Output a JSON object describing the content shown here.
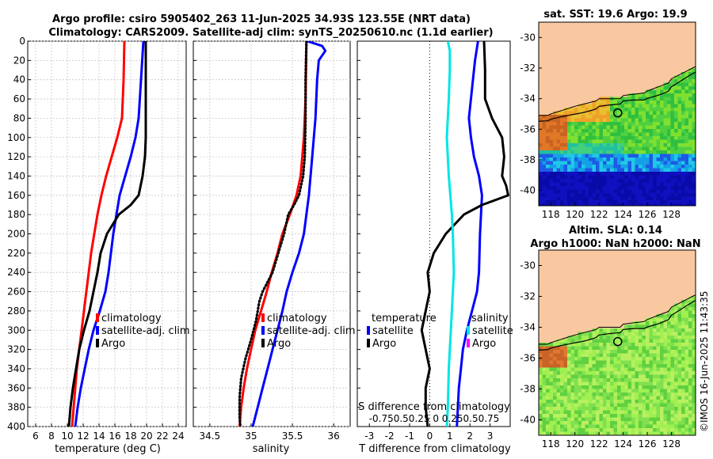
{
  "titles": {
    "line1": "Argo profile: csiro 5905402_263 11-Jun-2025 34.93S 123.55E (NRT data)",
    "line2": "Climatology: CARS2009. Satellite-adj clim: synTS_20250610.nc (1.1d earlier)",
    "sst": "sat. SST: 19.6 Argo: 19.9",
    "sla1": "Altim. SLA: 0.14",
    "sla2": "Argo h1000: NaN h2000: NaN",
    "watermark": "©IMOS 16-Jun-2025 11:43:35"
  },
  "colors": {
    "climatology": "#ff0000",
    "satellite": "#0000ff",
    "argo": "#000000",
    "argo_salinity": "#000000",
    "cyan": "#00e5e5",
    "land": "#fac8a0"
  },
  "chart_data": [
    {
      "type": "line",
      "panel": "temperature",
      "xlabel": "temperature (deg C)",
      "ylabel": "",
      "xlim": [
        5,
        25
      ],
      "ylim": [
        400,
        0
      ],
      "xticks": [
        6,
        8,
        10,
        12,
        14,
        16,
        18,
        20,
        22,
        24
      ],
      "yticks": [
        0,
        20,
        40,
        60,
        80,
        100,
        120,
        140,
        160,
        180,
        200,
        220,
        240,
        260,
        280,
        300,
        320,
        340,
        360,
        380,
        400
      ],
      "grid": true,
      "legend": [
        "climatology",
        "satellite-adj. clim",
        "Argo"
      ],
      "series": [
        {
          "name": "climatology",
          "style": "solid",
          "color": "climatology",
          "depth": [
            0,
            40,
            80,
            100,
            120,
            140,
            160,
            180,
            200,
            220,
            240,
            260,
            280,
            300,
            320,
            340,
            360,
            380,
            400
          ],
          "values": [
            17.2,
            17.1,
            16.9,
            16.3,
            15.6,
            14.9,
            14.3,
            13.8,
            13.4,
            13.0,
            12.7,
            12.4,
            12.1,
            11.8,
            11.5,
            11.2,
            11.0,
            10.8,
            10.6
          ]
        },
        {
          "name": "satellite-adj. clim",
          "style": "solid",
          "color": "satellite",
          "depth": [
            0,
            40,
            80,
            100,
            120,
            140,
            160,
            180,
            200,
            220,
            240,
            260,
            280,
            300,
            320,
            340,
            360,
            380,
            400
          ],
          "values": [
            19.6,
            19.3,
            19.0,
            18.6,
            18.0,
            17.3,
            16.6,
            16.2,
            15.8,
            15.5,
            15.2,
            14.8,
            14.1,
            13.3,
            12.7,
            12.2,
            11.7,
            11.3,
            11.0
          ]
        },
        {
          "name": "Argo",
          "style": "solid",
          "color": "argo",
          "depth": [
            0,
            40,
            80,
            100,
            120,
            140,
            160,
            170,
            180,
            200,
            220,
            240,
            260,
            280,
            300,
            320,
            340,
            360,
            380,
            400
          ],
          "values": [
            19.9,
            19.9,
            19.9,
            19.9,
            19.8,
            19.5,
            19.0,
            18.0,
            16.5,
            15.0,
            14.2,
            13.8,
            13.3,
            12.8,
            12.1,
            11.5,
            11.1,
            10.7,
            10.4,
            10.2
          ]
        }
      ]
    },
    {
      "type": "line",
      "panel": "salinity",
      "xlabel": "salinity",
      "ylabel": "",
      "xlim": [
        34.3,
        36.2
      ],
      "ylim": [
        400,
        0
      ],
      "xticks": [
        34.5,
        35,
        35.5,
        36
      ],
      "xticklabels": [
        "34.5",
        "35",
        "35.5",
        "36"
      ],
      "grid": true,
      "legend": [
        "climatology",
        "satellite-adj. clim",
        "Argo"
      ],
      "series": [
        {
          "name": "climatology",
          "style": "solid",
          "color": "climatology",
          "depth": [
            0,
            60,
            100,
            140,
            160,
            180,
            200,
            220,
            240,
            260,
            280,
            300,
            320,
            340,
            360,
            380,
            400
          ],
          "values": [
            35.67,
            35.66,
            35.64,
            35.6,
            35.55,
            35.47,
            35.38,
            35.32,
            35.25,
            35.19,
            35.12,
            35.05,
            35.0,
            34.95,
            34.91,
            34.88,
            34.86
          ]
        },
        {
          "name": "satellite-adj. clim",
          "style": "solid",
          "color": "satellite",
          "depth": [
            0,
            5,
            10,
            20,
            40,
            80,
            120,
            160,
            200,
            220,
            240,
            260,
            280,
            300,
            320,
            340,
            360,
            380,
            400
          ],
          "values": [
            35.68,
            35.86,
            35.9,
            35.82,
            35.8,
            35.78,
            35.74,
            35.7,
            35.64,
            35.58,
            35.5,
            35.43,
            35.38,
            35.32,
            35.26,
            35.2,
            35.14,
            35.08,
            35.02
          ]
        },
        {
          "name": "Argo",
          "style": "dotted",
          "color": "argo_salinity",
          "depth": [
            0,
            40,
            80,
            120,
            140,
            160,
            170,
            180,
            200,
            220,
            240,
            260,
            270,
            290,
            310,
            330,
            350,
            370,
            390,
            400
          ],
          "values": [
            35.67,
            35.66,
            35.66,
            35.65,
            35.63,
            35.58,
            35.52,
            35.45,
            35.4,
            35.33,
            35.26,
            35.14,
            35.1,
            35.06,
            35.0,
            34.93,
            34.88,
            34.86,
            34.86,
            34.87
          ]
        }
      ]
    },
    {
      "type": "line",
      "panel": "difference",
      "xlabel": "T difference from climatology",
      "top_xlabel": "S difference from climatology",
      "ylabel": "",
      "xlim": [
        -3.6,
        4.0
      ],
      "ylim": [
        400,
        0
      ],
      "xticks": [
        -3,
        -2,
        -1,
        0,
        1,
        2,
        3
      ],
      "top_xticklabels": [
        "-0.75",
        "-0.5",
        "0",
        "0.25",
        "0.5",
        "0.75"
      ],
      "top_xticklabel_text": "-0.750.50.25 0 0.250.50.75",
      "grid": false,
      "legend": [
        "temperature",
        "satellite",
        "Argo",
        "salinity",
        "satellite",
        "Argo"
      ],
      "series": [
        {
          "name": "temperature satellite",
          "style": "solid",
          "color": "satellite",
          "depth": [
            0,
            20,
            40,
            80,
            100,
            120,
            140,
            160,
            200,
            240,
            260,
            280,
            300,
            320,
            340,
            360,
            380,
            400
          ],
          "values": [
            2.4,
            2.25,
            2.15,
            1.95,
            2.05,
            2.2,
            2.45,
            2.6,
            2.5,
            2.45,
            2.35,
            2.1,
            1.85,
            1.65,
            1.55,
            1.45,
            1.4,
            1.35
          ]
        },
        {
          "name": "temperature Argo",
          "style": "solid",
          "color": "argo",
          "depth": [
            0,
            30,
            60,
            80,
            100,
            120,
            140,
            150,
            160,
            170,
            180,
            200,
            220,
            240,
            260,
            280,
            300,
            320,
            340,
            360,
            380,
            400
          ],
          "values": [
            2.7,
            2.75,
            2.75,
            3.1,
            3.6,
            3.7,
            3.6,
            3.8,
            3.9,
            2.6,
            1.7,
            0.8,
            0.2,
            -0.1,
            0.0,
            -0.2,
            -0.4,
            -0.2,
            0.0,
            -0.2,
            -0.2,
            -0.1
          ]
        },
        {
          "name": "salinity satellite",
          "style": "solid",
          "color": "cyan",
          "depth": [
            0,
            10,
            30,
            60,
            100,
            140,
            180,
            200,
            240,
            280,
            300,
            340,
            380,
            400
          ],
          "values": [
            0.9,
            1.0,
            1.0,
            0.95,
            0.85,
            0.95,
            1.1,
            1.15,
            1.2,
            1.1,
            1.05,
            0.95,
            0.9,
            0.85
          ]
        }
      ]
    },
    {
      "type": "heatmap",
      "panel": "sst_map",
      "title": "sat. SST: 19.6 Argo: 19.9",
      "xticks": [
        118,
        120,
        122,
        124,
        126,
        128
      ],
      "yticks": [
        -30,
        -32,
        -34,
        -36,
        -38,
        -40
      ],
      "xlim": [
        117,
        130
      ],
      "ylim": [
        -41,
        -29
      ],
      "argo_position": {
        "lon": 123.55,
        "lat": -34.93
      }
    },
    {
      "type": "heatmap",
      "panel": "sla_map",
      "title": "Altim. SLA: 0.14",
      "subtitle": "Argo h1000: NaN h2000: NaN",
      "xticks": [
        118,
        120,
        122,
        124,
        126,
        128
      ],
      "yticks": [
        -30,
        -32,
        -34,
        -36,
        -38,
        -40
      ],
      "xlim": [
        117,
        130
      ],
      "ylim": [
        -41,
        -29
      ],
      "argo_position": {
        "lon": 123.55,
        "lat": -34.93
      }
    }
  ]
}
